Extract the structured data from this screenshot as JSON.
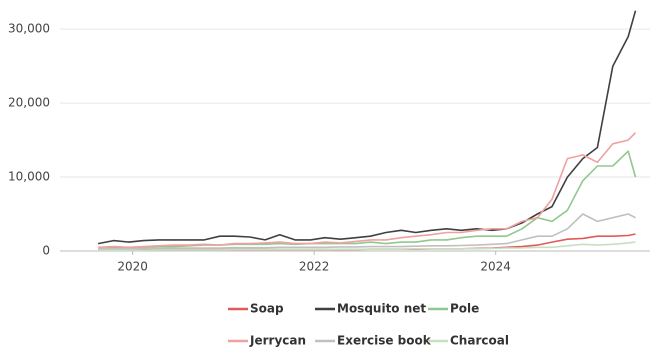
{
  "chart_data": {
    "type": "line",
    "x": [
      2019.62,
      2019.79,
      2019.96,
      2020.12,
      2020.29,
      2020.46,
      2020.62,
      2020.79,
      2020.96,
      2021.12,
      2021.29,
      2021.46,
      2021.62,
      2021.79,
      2021.96,
      2022.12,
      2022.29,
      2022.46,
      2022.62,
      2022.79,
      2022.96,
      2023.12,
      2023.29,
      2023.46,
      2023.62,
      2023.79,
      2023.96,
      2024.12,
      2024.29,
      2024.46,
      2024.62,
      2024.79,
      2024.96,
      2025.12,
      2025.29,
      2025.46,
      2025.54
    ],
    "series": [
      {
        "name": "Soap",
        "color": "#e05a5a",
        "values": [
          200,
          200,
          200,
          200,
          200,
          200,
          200,
          200,
          200,
          200,
          200,
          200,
          200,
          200,
          200,
          200,
          200,
          200,
          250,
          250,
          250,
          250,
          300,
          300,
          300,
          350,
          400,
          500,
          600,
          800,
          1200,
          1600,
          1700,
          2000,
          2000,
          2100,
          2300
        ]
      },
      {
        "name": "Mosquito net",
        "color": "#404040",
        "values": [
          1000,
          1400,
          1200,
          1400,
          1500,
          1500,
          1500,
          1500,
          2000,
          2000,
          1900,
          1500,
          2200,
          1500,
          1500,
          1800,
          1600,
          1800,
          2000,
          2500,
          2800,
          2500,
          2800,
          3000,
          2800,
          3000,
          2800,
          3000,
          3800,
          5000,
          6000,
          10000,
          12500,
          14000,
          25000,
          29000,
          32500
        ]
      },
      {
        "name": "Pole",
        "color": "#90c890",
        "values": [
          300,
          400,
          400,
          500,
          600,
          600,
          700,
          800,
          800,
          900,
          900,
          900,
          1000,
          900,
          1000,
          1000,
          1000,
          1000,
          1200,
          1000,
          1200,
          1200,
          1500,
          1500,
          1800,
          2000,
          2000,
          2000,
          3000,
          4500,
          4000,
          5500,
          9500,
          11500,
          11500,
          13500,
          10000
        ]
      },
      {
        "name": "Jerrycan",
        "color": "#f0a0a0",
        "values": [
          500,
          600,
          500,
          600,
          700,
          800,
          800,
          900,
          800,
          1000,
          1000,
          1100,
          1200,
          1000,
          1000,
          1200,
          1100,
          1300,
          1500,
          1500,
          1800,
          2000,
          2200,
          2500,
          2500,
          2800,
          3000,
          3000,
          4000,
          4500,
          7000,
          12500,
          13000,
          12000,
          14500,
          15000,
          16000
        ]
      },
      {
        "name": "Exercise book",
        "color": "#c0c0c0",
        "values": [
          300,
          300,
          300,
          350,
          350,
          400,
          400,
          400,
          400,
          450,
          450,
          450,
          500,
          500,
          500,
          500,
          550,
          550,
          600,
          600,
          600,
          650,
          700,
          700,
          750,
          800,
          900,
          1000,
          1500,
          2000,
          2000,
          3000,
          5000,
          4000,
          4500,
          5000,
          4500
        ]
      },
      {
        "name": "Charcoal",
        "color": "#c8e0c0",
        "values": [
          100,
          100,
          100,
          100,
          150,
          150,
          150,
          150,
          150,
          200,
          200,
          200,
          200,
          200,
          200,
          200,
          250,
          250,
          250,
          250,
          250,
          300,
          300,
          300,
          300,
          300,
          350,
          400,
          400,
          500,
          500,
          700,
          900,
          800,
          900,
          1100,
          1200
        ]
      }
    ],
    "xlim": [
      2019.2,
      2025.7
    ],
    "xticks": [
      2020,
      2022,
      2024
    ],
    "ylim": [
      0,
      33000
    ],
    "yticks": [
      0,
      {
        "value": 10000,
        "label": "10,000"
      },
      {
        "value": 20000,
        "label": "20,000"
      },
      {
        "value": 30000,
        "label": "30,000"
      }
    ],
    "grid": true
  }
}
